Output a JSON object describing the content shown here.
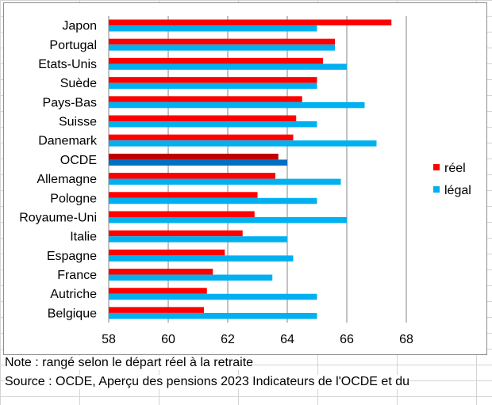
{
  "chart_data": {
    "type": "bar",
    "orientation": "horizontal",
    "categories": [
      "Japon",
      "Portugal",
      "Etats-Unis",
      "Suède",
      "Pays-Bas",
      "Suisse",
      "Danemark",
      "OCDE",
      "Allemagne",
      "Pologne",
      "Royaume-Uni",
      "Italie",
      "Espagne",
      "France",
      "Autriche",
      "Belgique"
    ],
    "series": [
      {
        "name": "réel",
        "color": "#ff0000",
        "highlight_color": "#c00000",
        "values": [
          67.5,
          65.6,
          65.2,
          65.0,
          64.5,
          64.3,
          64.2,
          63.7,
          63.6,
          63.0,
          62.9,
          62.5,
          61.9,
          61.5,
          61.3,
          61.2
        ]
      },
      {
        "name": "légal",
        "color": "#00b0f0",
        "highlight_color": "#0070c0",
        "values": [
          65,
          65.6,
          66,
          65,
          66.6,
          65,
          67,
          64,
          65.8,
          65,
          66,
          64,
          64.2,
          63.5,
          65,
          65
        ]
      }
    ],
    "highlight_category": "OCDE",
    "xlim": [
      58,
      68
    ],
    "xticks": [
      "58",
      "60",
      "62",
      "64",
      "66",
      "68"
    ],
    "grid": "vertical",
    "legend": "right"
  },
  "notes": {
    "line1": "Note : rangé selon le départ réel à la retraite",
    "line2": "Source : OCDE, Aperçu des pensions 2023 Indicateurs de l'OCDE et du"
  }
}
